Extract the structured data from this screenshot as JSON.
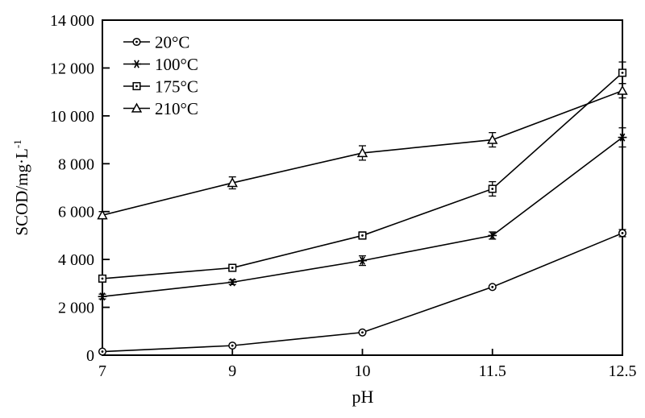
{
  "figure": {
    "background": "#ffffff",
    "ink": "#000000"
  },
  "chart_data": {
    "type": "line",
    "title": "",
    "xlabel": "pH",
    "ylabel": "SCOD/mg·L⁻¹",
    "ylabel_base": "SCOD/mg·L",
    "ylabel_sup": "-1",
    "x_tick_labels": [
      "7",
      "9",
      "10",
      "11.5",
      "12.5"
    ],
    "x_values": [
      7,
      9,
      10,
      11.5,
      12.5
    ],
    "x_spacing": "categorical-even",
    "y_tick_labels": [
      "0",
      "2 000",
      "4 000",
      "6 000",
      "8 000",
      "10 000",
      "12 000",
      "14 000"
    ],
    "ylim": [
      0,
      14000
    ],
    "ytick_step": 2000,
    "grid": false,
    "legend_position": "top-left-inside",
    "error_bars": true,
    "series": [
      {
        "name": "20°C",
        "marker": "circle",
        "values": [
          150,
          400,
          950,
          2850,
          5100
        ],
        "errors": [
          0,
          0,
          0,
          0,
          150
        ]
      },
      {
        "name": "100°C",
        "marker": "asterisk",
        "values": [
          2450,
          3050,
          3950,
          5000,
          9100
        ],
        "errors": [
          100,
          100,
          200,
          150,
          400
        ]
      },
      {
        "name": "175°C",
        "marker": "square",
        "values": [
          3200,
          3650,
          5000,
          6950,
          11800
        ],
        "errors": [
          100,
          100,
          150,
          300,
          450
        ]
      },
      {
        "name": "210°C",
        "marker": "triangle",
        "values": [
          5850,
          7200,
          8450,
          9000,
          11050
        ],
        "errors": [
          150,
          250,
          300,
          300,
          300
        ]
      }
    ]
  }
}
